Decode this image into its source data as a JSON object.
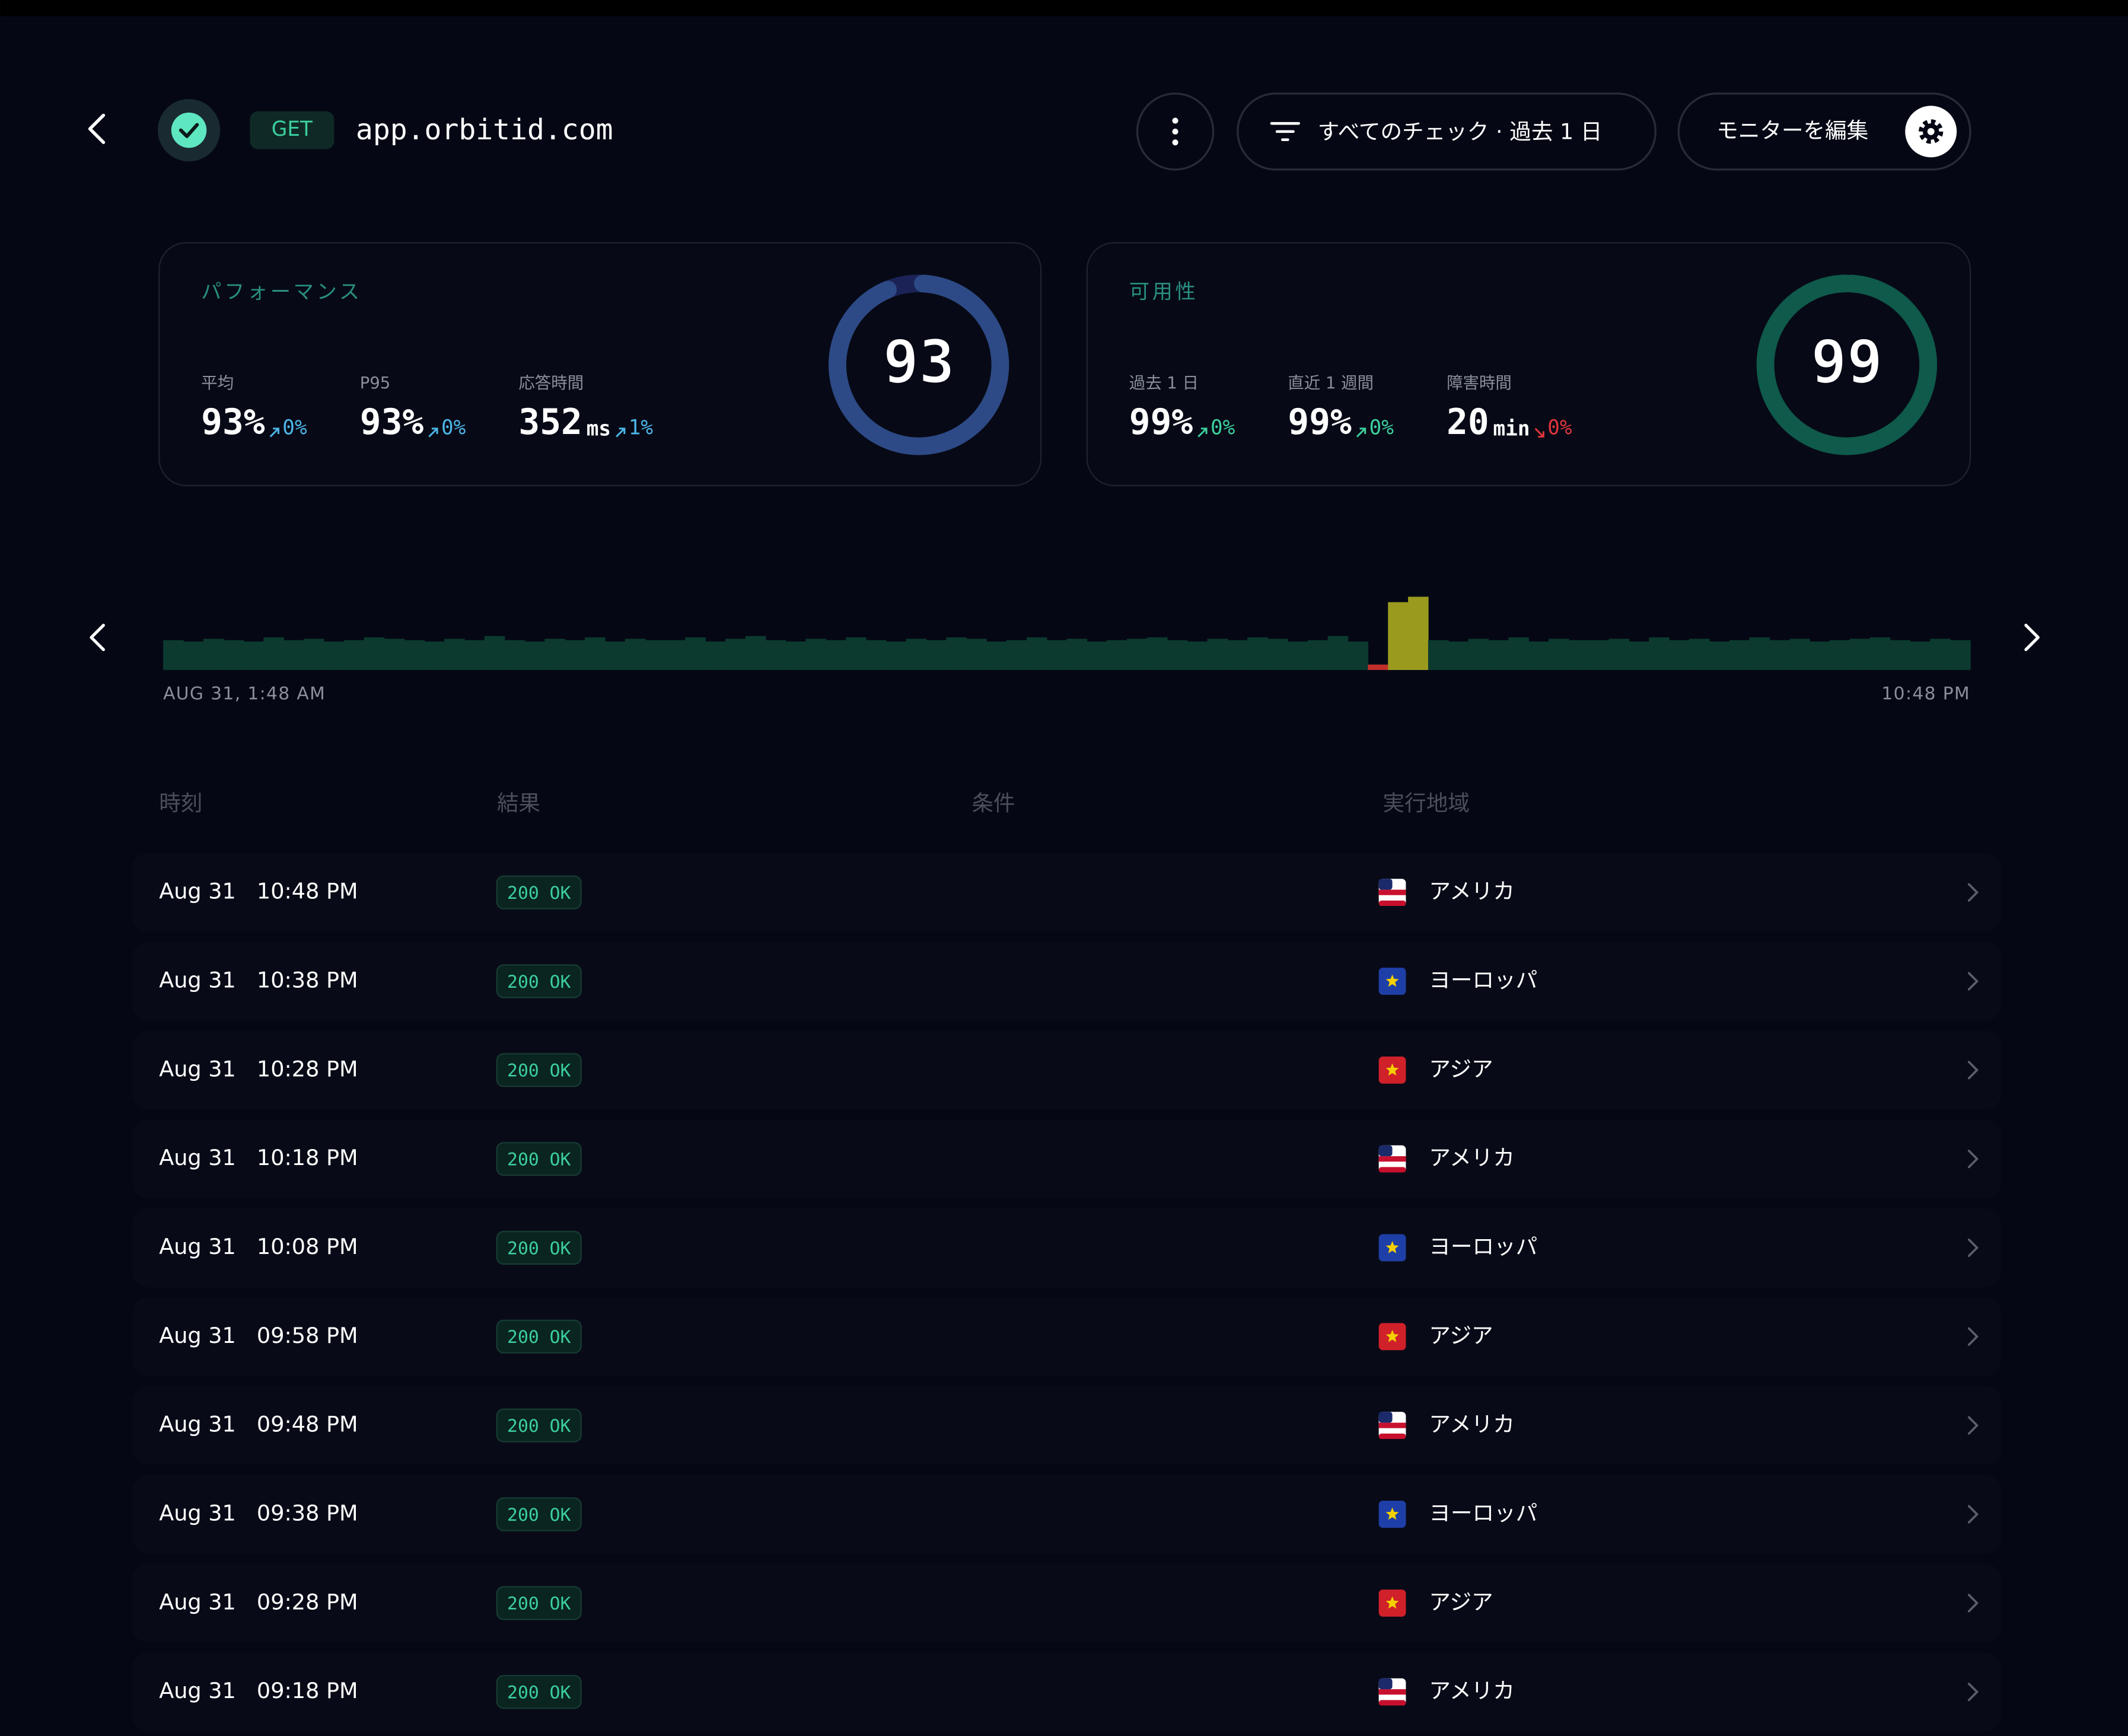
{
  "header": {
    "method": "GET",
    "host": "app.orbitid.com",
    "filter": "すべてのチェック · 過去 1 日",
    "edit": "モニターを編集"
  },
  "cards": [
    {
      "title": "パフォーマンス",
      "gauge": 93,
      "ring_color": "#2d4a86",
      "track_color": "#1b2356",
      "metrics": [
        {
          "label": "平均",
          "value": "93%",
          "delta": "0%",
          "trend": "up",
          "delta_color": "#4db5e8"
        },
        {
          "label": "P95",
          "value": "93%",
          "delta": "0%",
          "trend": "up",
          "delta_color": "#4db5e8"
        },
        {
          "label": "応答時間",
          "value": "352",
          "unit": "ms",
          "delta": "1%",
          "trend": "up",
          "delta_color": "#4db5e8"
        }
      ]
    },
    {
      "title": "可用性",
      "gauge": 99,
      "ring_color": "#0f5a4a",
      "track_color": "#0a2a24",
      "metrics": [
        {
          "label": "過去 1 日",
          "value": "99%",
          "delta": "0%",
          "trend": "up",
          "delta_color": "#3ccf9e"
        },
        {
          "label": "直近 1 週間",
          "value": "99%",
          "delta": "0%",
          "trend": "up",
          "delta_color": "#3ccf9e"
        },
        {
          "label": "障害時間",
          "value": "20",
          "unit": "min",
          "delta": "0%",
          "trend": "down",
          "delta_color": "#e0353a"
        }
      ]
    }
  ],
  "timeline": {
    "start_label": "AUG 31, 1:48 AM",
    "end_label": "10:48 PM",
    "values": [
      22,
      21,
      23,
      22,
      21,
      24,
      22,
      23,
      21,
      22,
      24,
      23,
      22,
      21,
      23,
      22,
      25,
      22,
      21,
      23,
      22,
      24,
      21,
      23,
      22,
      22,
      24,
      21,
      23,
      25,
      22,
      21,
      23,
      22,
      24,
      22,
      21,
      23,
      22,
      24,
      23,
      21,
      22,
      24,
      22,
      23,
      21,
      22,
      23,
      24,
      22,
      21,
      23,
      22,
      24,
      23,
      21,
      22,
      25,
      21,
      4,
      50,
      54,
      22,
      21,
      23,
      22,
      24,
      21,
      23,
      22,
      22,
      23,
      21,
      24,
      22,
      23,
      21,
      22,
      24,
      22,
      23,
      21,
      22,
      23,
      24,
      22,
      21,
      23,
      22
    ],
    "colors": [
      "#0c3a2f",
      "#0c3a2f",
      "#0c3a2f",
      "#0c3a2f",
      "#0c3a2f",
      "#0c3a2f",
      "#0c3a2f",
      "#0c3a2f",
      "#0c3a2f",
      "#0c3a2f",
      "#0c3a2f",
      "#0c3a2f",
      "#0c3a2f",
      "#0c3a2f",
      "#0c3a2f",
      "#0c3a2f",
      "#0c3a2f",
      "#0c3a2f",
      "#0c3a2f",
      "#0c3a2f",
      "#0c3a2f",
      "#0c3a2f",
      "#0c3a2f",
      "#0c3a2f",
      "#0c3a2f",
      "#0c3a2f",
      "#0c3a2f",
      "#0c3a2f",
      "#0c3a2f",
      "#0c3a2f",
      "#0c3a2f",
      "#0c3a2f",
      "#0c3a2f",
      "#0c3a2f",
      "#0c3a2f",
      "#0c3a2f",
      "#0c3a2f",
      "#0c3a2f",
      "#0c3a2f",
      "#0c3a2f",
      "#0c3a2f",
      "#0c3a2f",
      "#0c3a2f",
      "#0c3a2f",
      "#0c3a2f",
      "#0c3a2f",
      "#0c3a2f",
      "#0c3a2f",
      "#0c3a2f",
      "#0c3a2f",
      "#0c3a2f",
      "#0c3a2f",
      "#0c3a2f",
      "#0c3a2f",
      "#0c3a2f",
      "#0c3a2f",
      "#0c3a2f",
      "#0c3a2f",
      "#0c3a2f",
      "#0c3a2f",
      "#c0302b",
      "#9a9a1e",
      "#9a9a1e",
      "#0c3a2f",
      "#0c3a2f",
      "#0c3a2f",
      "#0c3a2f",
      "#0c3a2f",
      "#0c3a2f",
      "#0c3a2f",
      "#0c3a2f",
      "#0c3a2f",
      "#0c3a2f",
      "#0c3a2f",
      "#0c3a2f",
      "#0c3a2f",
      "#0c3a2f",
      "#0c3a2f",
      "#0c3a2f",
      "#0c3a2f",
      "#0c3a2f",
      "#0c3a2f",
      "#0c3a2f",
      "#0c3a2f",
      "#0c3a2f",
      "#0c3a2f",
      "#0c3a2f",
      "#0c3a2f",
      "#0c3a2f",
      "#0c3a2f"
    ]
  },
  "table": {
    "columns": [
      "時刻",
      "結果",
      "条件",
      "実行地域"
    ],
    "rows": [
      {
        "date": "Aug 31",
        "time": "10:48 PM",
        "result": "200 OK",
        "region": "アメリカ"
      },
      {
        "date": "Aug 31",
        "time": "10:38 PM",
        "result": "200 OK",
        "region": "ヨーロッパ"
      },
      {
        "date": "Aug 31",
        "time": "10:28 PM",
        "result": "200 OK",
        "region": "アジア"
      },
      {
        "date": "Aug 31",
        "time": "10:18 PM",
        "result": "200 OK",
        "region": "アメリカ"
      },
      {
        "date": "Aug 31",
        "time": "10:08 PM",
        "result": "200 OK",
        "region": "ヨーロッパ"
      },
      {
        "date": "Aug 31",
        "time": "09:58 PM",
        "result": "200 OK",
        "region": "アジア"
      },
      {
        "date": "Aug 31",
        "time": "09:48 PM",
        "result": "200 OK",
        "region": "アメリカ"
      },
      {
        "date": "Aug 31",
        "time": "09:38 PM",
        "result": "200 OK",
        "region": "ヨーロッパ"
      },
      {
        "date": "Aug 31",
        "time": "09:28 PM",
        "result": "200 OK",
        "region": "アジア"
      },
      {
        "date": "Aug 31",
        "time": "09:18 PM",
        "result": "200 OK",
        "region": "アメリカ"
      }
    ]
  }
}
